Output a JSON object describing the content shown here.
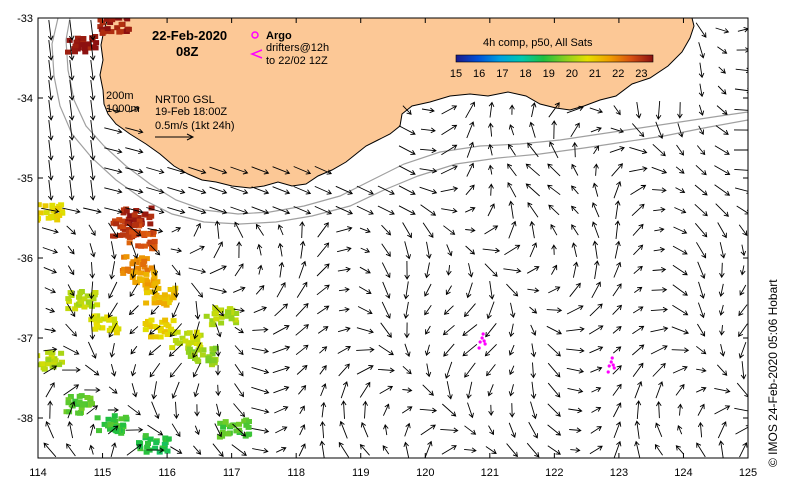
{
  "header": {
    "date": "22-Feb-2020",
    "time": "08Z"
  },
  "legend": {
    "argo_label": "Argo",
    "drifters_line1": "drifters@12h",
    "drifters_line2": "to 22/02 12Z",
    "argo_color": "#ff00ff",
    "drifter_color": "#ff00ff"
  },
  "colorbar": {
    "title": "4h comp, p50, All Sats",
    "ticks": [
      "15",
      "16",
      "17",
      "18",
      "19",
      "20",
      "21",
      "22",
      "23"
    ],
    "min": 15,
    "max": 23.5,
    "colors": [
      "#1a1a8c",
      "#0050d8",
      "#00a0e0",
      "#00c8b0",
      "#20c040",
      "#8ad020",
      "#e6e000",
      "#f0a000",
      "#d85010",
      "#8c1010"
    ]
  },
  "info": {
    "isobath_shallow": "200m",
    "isobath_deep": "1000m",
    "model": "NRT00 GSL",
    "model_date": "19-Feb 18:00Z",
    "scale_label": "0.5m/s (1kt 24h)"
  },
  "axes": {
    "lon_ticks": [
      "114",
      "115",
      "116",
      "117",
      "118",
      "119",
      "120",
      "121",
      "122",
      "123",
      "124",
      "125"
    ],
    "lat_ticks": [
      "-33",
      "-34",
      "-35",
      "-36",
      "-37",
      "-38"
    ],
    "lon_range": [
      114,
      125
    ],
    "lat_range": [
      -38.5,
      -33
    ]
  },
  "land_color": "#fcc896",
  "credit": "© IMOS 24-Feb-2020 05:06 Hobart",
  "drifters": [
    {
      "lon": 120.85,
      "lat": -37.05,
      "color": "#ff00ff"
    },
    {
      "lon": 122.85,
      "lat": -37.35,
      "color": "#ff00ff"
    }
  ],
  "sst_patches": [
    {
      "lon": 114.65,
      "lat": -33.3,
      "value": 23.4
    },
    {
      "lon": 115.15,
      "lat": -33.05,
      "value": 23.3
    },
    {
      "lon": 115.5,
      "lat": -35.45,
      "value": 23.2
    },
    {
      "lon": 115.3,
      "lat": -35.6,
      "value": 22.9
    },
    {
      "lon": 115.55,
      "lat": -35.75,
      "value": 22.6
    },
    {
      "lon": 115.5,
      "lat": -36.05,
      "value": 22.0
    },
    {
      "lon": 115.6,
      "lat": -36.25,
      "value": 21.5
    },
    {
      "lon": 115.85,
      "lat": -36.45,
      "value": 21.2
    },
    {
      "lon": 114.1,
      "lat": -35.4,
      "value": 20.8
    },
    {
      "lon": 114.65,
      "lat": -36.5,
      "value": 20.2
    },
    {
      "lon": 115.85,
      "lat": -36.85,
      "value": 20.9
    },
    {
      "lon": 116.25,
      "lat": -37.0,
      "value": 20.4
    },
    {
      "lon": 116.5,
      "lat": -37.2,
      "value": 19.8
    },
    {
      "lon": 114.1,
      "lat": -37.25,
      "value": 20.2
    },
    {
      "lon": 114.6,
      "lat": -37.8,
      "value": 19.3
    },
    {
      "lon": 115.1,
      "lat": -38.05,
      "value": 19.0
    },
    {
      "lon": 115.75,
      "lat": -38.3,
      "value": 18.8
    },
    {
      "lon": 117.0,
      "lat": -38.1,
      "value": 19.2
    },
    {
      "lon": 115.0,
      "lat": -36.8,
      "value": 20.6
    },
    {
      "lon": 116.8,
      "lat": -36.7,
      "value": 20.1
    }
  ]
}
